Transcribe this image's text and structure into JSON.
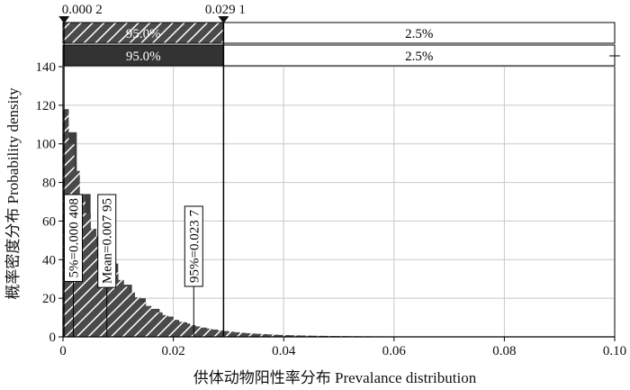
{
  "chart_data": {
    "type": "bar",
    "xlabel": "供体动物阳性率分布 Prevalance distribution",
    "ylabel": "概率密度分布 Probability density",
    "xlim": [
      0,
      0.1
    ],
    "ylim": [
      0,
      140
    ],
    "x_ticks": [
      "0",
      "0.02",
      "0.04",
      "0.06",
      "0.08",
      "0.10"
    ],
    "y_ticks": [
      "0",
      "20",
      "40",
      "60",
      "80",
      "100",
      "120",
      "140"
    ],
    "grid": true,
    "delimiters": {
      "left": "0.000 2",
      "right": "0.029 1",
      "left_value": 0.0002,
      "right_value": 0.0291
    },
    "bars_above": {
      "hatched": {
        "left": "95.0%",
        "right": "2.5%"
      },
      "solid": {
        "left": "95.0%",
        "right": "2.5%"
      }
    },
    "markers": [
      {
        "label": "5%=0.000 408",
        "x": 0.000408
      },
      {
        "label": "Mean=0.007 95",
        "x": 0.00795
      },
      {
        "label": "95%=0.023 7",
        "x": 0.0237
      }
    ],
    "series": [
      {
        "style": "hatched histogram",
        "bin_width": 0.001,
        "x": [
          0.0005,
          0.0015,
          0.0025,
          0.0035,
          0.0045,
          0.0055,
          0.0065,
          0.0075,
          0.0085,
          0.0095,
          0.0105,
          0.0115,
          0.0125,
          0.0135,
          0.0145,
          0.0155,
          0.0165,
          0.0175,
          0.0185,
          0.0195,
          0.0205,
          0.0215,
          0.0225,
          0.0235,
          0.0245,
          0.0255,
          0.0265,
          0.0275,
          0.0285,
          0.0295,
          0.0305,
          0.0315,
          0.0325,
          0.0335,
          0.0345,
          0.0355,
          0.0365,
          0.0375,
          0.0385,
          0.0395,
          0.0405,
          0.0415,
          0.0425,
          0.0435,
          0.0445,
          0.0455,
          0.0465,
          0.0475,
          0.0485,
          0.0495,
          0.0505,
          0.0515,
          0.0525,
          0.0535,
          0.0545,
          0.0555,
          0.0565,
          0.0575,
          0.0585,
          0.0595,
          0.0605,
          0.0615,
          0.0625,
          0.0635,
          0.0645,
          0.0655,
          0.0665,
          0.0675,
          0.0685,
          0.0695,
          0.0705,
          0.0715,
          0.0725,
          0.0735,
          0.0745,
          0.0755,
          0.0765,
          0.0775,
          0.0785,
          0.0795,
          0.0805,
          0.0815,
          0.0825,
          0.0835,
          0.0845,
          0.0855,
          0.0865,
          0.0875,
          0.0885,
          0.0895,
          0.0905,
          0.0915,
          0.0925,
          0.0935,
          0.0945,
          0.0955,
          0.0965,
          0.0975,
          0.0985,
          0.0995
        ],
        "y": [
          118,
          100,
          86,
          74,
          64,
          56,
          49,
          43,
          38,
          33.5,
          29.5,
          26,
          23,
          20.5,
          18,
          16,
          14.2,
          12.7,
          11.3,
          10,
          8.8,
          7.8,
          6.9,
          6.1,
          5.4,
          4.8,
          4.3,
          3.8,
          3.4,
          3,
          2.7,
          2.4,
          2.15,
          1.9,
          1.7,
          1.55,
          1.4,
          1.25,
          1.12,
          1,
          0.92,
          0.84,
          0.76,
          0.7,
          0.64,
          0.58,
          0.54,
          0.5,
          0.46,
          0.43,
          0.4,
          0.37,
          0.35,
          0.33,
          0.31,
          0.29,
          0.27,
          0.26,
          0.25,
          0.24,
          0.23,
          0.22,
          0.21,
          0.2,
          0.19,
          0.18,
          0.17,
          0.16,
          0.15,
          0.15,
          0.14,
          0.14,
          0.13,
          0.13,
          0.12,
          0.12,
          0.11,
          0.11,
          0.1,
          0.1,
          0.1,
          0.1,
          0.09,
          0.09,
          0.09,
          0.09,
          0.08,
          0.08,
          0.08,
          0.08,
          0.08,
          0.07,
          0.07,
          0.07,
          0.07,
          0.07,
          0.06,
          0.06,
          0.06,
          0.06
        ]
      },
      {
        "style": "solid histogram",
        "bin_width": 0.0025,
        "x": [
          0.00125,
          0.00375,
          0.00625,
          0.00875,
          0.01125,
          0.01375,
          0.01625,
          0.01875,
          0.02125,
          0.02375
        ],
        "y": [
          106,
          74,
          52,
          38,
          27,
          20,
          14.5,
          10.5,
          7.5,
          5
        ]
      }
    ]
  }
}
